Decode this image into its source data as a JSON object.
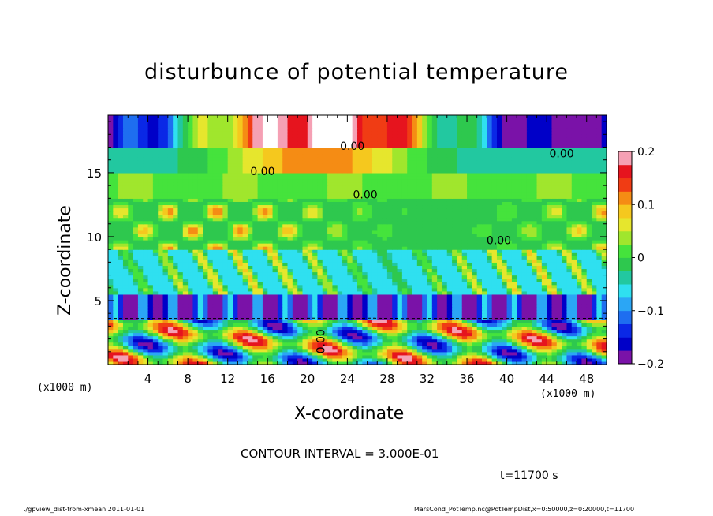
{
  "chart_data": {
    "type": "heatmap",
    "title": "disturbunce of potential temperature",
    "xlabel": "X-coordinate",
    "ylabel": "Z-coordinate",
    "x_unit": "(x1000 m)",
    "xlim": [
      0,
      50
    ],
    "ylim": [
      0,
      19.5
    ],
    "x_ticks": [
      4,
      8,
      12,
      16,
      20,
      24,
      28,
      32,
      36,
      40,
      44,
      48
    ],
    "y_ticks": [
      5,
      10,
      15
    ],
    "contour_labels": [
      "0.00",
      "0.00",
      "0.00",
      "0.00",
      "0.00",
      "0.00"
    ],
    "colorbar": {
      "range": [
        -0.2,
        0.2
      ],
      "ticks": [
        -0.2,
        -0.1,
        0,
        0.1,
        0.2
      ],
      "tick_labels": [
        "−0.2",
        "−0.1",
        "0",
        "0.1",
        "0.2"
      ],
      "colors": [
        "#7a12a8",
        "#0000c8",
        "#0a28e6",
        "#1e6ef0",
        "#2ba6f5",
        "#2fe0f0",
        "#22c8a0",
        "#2ec84e",
        "#45e33c",
        "#a0e62d",
        "#e6e62d",
        "#f5c81e",
        "#f58c14",
        "#f03c14",
        "#e6141e",
        "#f5a0b4"
      ]
    },
    "grid": false,
    "legend": "colorbar-right",
    "contour_interval": "CONTOUR INTERVAL = 3.000E-01",
    "time": "t=11700 s"
  },
  "footer": {
    "left": "./gpview_dist-from-xmean   2011-01-01",
    "right": "MarsCond_PotTemp.nc@PotTempDist,x=0:50000,z=0:20000,t=11700"
  }
}
